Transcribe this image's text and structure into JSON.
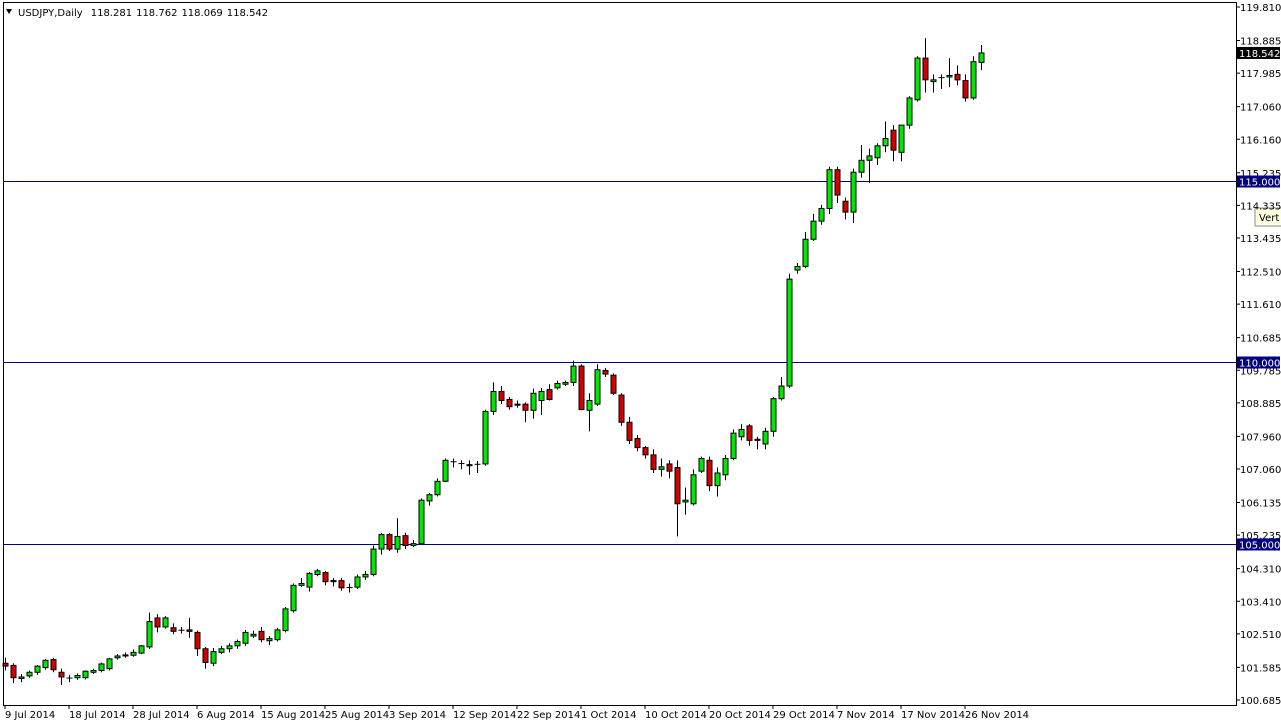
{
  "chart_data": {
    "type": "candlestick",
    "title": "USDJPY,Daily",
    "tooltip": "Vert",
    "categories": [
      "9 Jul 2014",
      null,
      null,
      null,
      null,
      null,
      null,
      null,
      "18 Jul 2014",
      null,
      null,
      null,
      null,
      null,
      null,
      null,
      "28 Jul 2014",
      null,
      null,
      null,
      null,
      null,
      null,
      null,
      "6 Aug 2014",
      null,
      null,
      null,
      null,
      null,
      null,
      null,
      "15 Aug 2014",
      null,
      null,
      null,
      null,
      null,
      null,
      null,
      "25 Aug 2014",
      null,
      null,
      null,
      null,
      null,
      null,
      null,
      "3 Sep 2014",
      null,
      null,
      null,
      null,
      null,
      null,
      null,
      "12 Sep 2014",
      null,
      null,
      null,
      null,
      null,
      null,
      null,
      "22 Sep 2014",
      null,
      null,
      null,
      null,
      null,
      null,
      null,
      "1 Oct 2014",
      null,
      null,
      null,
      null,
      null,
      null,
      null,
      "10 Oct 2014",
      null,
      null,
      null,
      null,
      null,
      null,
      null,
      "20 Oct 2014",
      null,
      null,
      null,
      null,
      null,
      null,
      null,
      "29 Oct 2014",
      null,
      null,
      null,
      null,
      null,
      null,
      null,
      "7 Nov 2014",
      null,
      null,
      null,
      null,
      null,
      null,
      null,
      "17 Nov 2014",
      null,
      null,
      null,
      null,
      null,
      null,
      null,
      "26 Nov 2014",
      null,
      null
    ],
    "open": [
      101.7,
      101.64,
      101.28,
      101.35,
      101.45,
      101.58,
      101.8,
      101.45,
      101.3,
      101.3,
      101.3,
      101.45,
      101.5,
      101.55,
      101.85,
      101.9,
      101.92,
      101.98,
      102.15,
      102.95,
      102.7,
      102.68,
      102.6,
      102.62,
      102.55,
      102.1,
      101.7,
      102.0,
      102.1,
      102.18,
      102.25,
      102.45,
      102.58,
      102.32,
      102.35,
      102.6,
      103.15,
      103.85,
      103.8,
      104.15,
      104.2,
      103.95,
      103.98,
      103.78,
      103.8,
      104.08,
      104.15,
      104.85,
      105.25,
      104.85,
      105.22,
      104.95,
      105.0,
      106.18,
      106.35,
      106.72,
      107.25,
      107.2,
      107.15,
      107.18,
      107.2,
      108.65,
      109.2,
      108.98,
      108.82,
      108.85,
      108.68,
      108.95,
      109.25,
      109.3,
      109.4,
      109.45,
      109.9,
      108.68,
      108.85,
      109.78,
      109.65,
      109.1,
      108.35,
      107.9,
      107.65,
      107.45,
      107.05,
      107.2,
      107.1,
      106.15,
      106.1,
      107.0,
      107.3,
      106.6,
      106.9,
      107.35,
      107.95,
      108.25,
      107.85,
      107.75,
      108.1,
      109.0,
      109.35,
      112.55,
      112.65,
      113.4,
      113.9,
      114.25,
      115.32,
      114.45,
      114.15,
      115.25,
      115.58,
      115.65,
      115.98,
      116.41,
      115.8,
      116.55,
      117.25,
      118.4,
      117.75,
      117.85,
      117.88,
      117.95,
      117.78,
      117.3,
      118.281
    ],
    "high": [
      101.85,
      101.7,
      101.4,
      101.5,
      101.65,
      101.82,
      101.85,
      101.55,
      101.38,
      101.42,
      101.5,
      101.55,
      101.72,
      101.85,
      101.95,
      102.0,
      102.08,
      102.2,
      103.1,
      103.05,
      103.0,
      102.8,
      102.7,
      102.95,
      102.6,
      102.15,
      102.12,
      102.18,
      102.25,
      102.35,
      102.62,
      102.6,
      102.7,
      102.45,
      102.68,
      103.25,
      103.9,
      104.05,
      104.22,
      104.3,
      104.25,
      104.05,
      104.05,
      103.9,
      104.15,
      104.25,
      104.95,
      105.3,
      105.3,
      105.7,
      105.3,
      105.1,
      106.25,
      106.4,
      106.8,
      107.35,
      107.35,
      107.3,
      107.3,
      107.28,
      108.7,
      109.45,
      109.35,
      109.05,
      108.95,
      108.9,
      109.28,
      109.3,
      109.4,
      109.5,
      109.5,
      110.05,
      109.95,
      109.15,
      109.95,
      109.85,
      109.7,
      109.15,
      108.5,
      108.0,
      107.7,
      107.6,
      107.35,
      107.3,
      107.3,
      106.55,
      107.05,
      107.4,
      107.4,
      107.1,
      107.45,
      108.15,
      108.3,
      108.3,
      107.95,
      108.2,
      109.05,
      109.6,
      112.45,
      112.75,
      113.6,
      114.1,
      114.35,
      115.4,
      115.4,
      114.55,
      115.35,
      116.0,
      115.9,
      116.05,
      116.65,
      116.55,
      116.55,
      117.35,
      118.45,
      118.95,
      117.95,
      117.95,
      118.4,
      118.2,
      117.95,
      118.45,
      118.762
    ],
    "low": [
      101.5,
      101.15,
      101.18,
      101.3,
      101.38,
      101.52,
      101.45,
      101.1,
      101.18,
      101.24,
      101.25,
      101.4,
      101.45,
      101.5,
      101.8,
      101.85,
      101.88,
      101.95,
      102.1,
      102.55,
      102.65,
      102.5,
      102.52,
      102.4,
      101.9,
      101.55,
      101.62,
      101.95,
      102.0,
      102.1,
      102.18,
      102.4,
      102.28,
      102.2,
      102.3,
      102.55,
      103.1,
      103.8,
      103.68,
      104.1,
      103.85,
      103.82,
      103.7,
      103.65,
      103.75,
      104.0,
      104.1,
      104.7,
      104.8,
      104.75,
      104.85,
      104.9,
      104.98,
      106.05,
      106.3,
      106.7,
      107.1,
      107.05,
      106.9,
      106.95,
      107.15,
      108.55,
      108.85,
      108.7,
      108.75,
      108.35,
      108.45,
      108.55,
      108.95,
      109.25,
      109.35,
      109.35,
      108.68,
      108.1,
      108.8,
      109.6,
      109.1,
      108.25,
      107.75,
      107.55,
      107.35,
      106.95,
      106.85,
      106.8,
      105.2,
      105.8,
      106.05,
      106.95,
      106.45,
      106.3,
      106.75,
      107.3,
      107.85,
      107.7,
      107.6,
      107.6,
      107.95,
      108.95,
      109.3,
      112.45,
      112.6,
      113.35,
      113.8,
      114.1,
      114.4,
      113.95,
      113.85,
      115.1,
      114.95,
      115.45,
      115.8,
      115.55,
      115.55,
      116.45,
      117.2,
      117.45,
      117.45,
      117.55,
      117.6,
      117.65,
      117.2,
      117.25,
      118.069
    ],
    "close": [
      101.62,
      101.3,
      101.32,
      101.45,
      101.62,
      101.78,
      101.52,
      101.32,
      101.28,
      101.36,
      101.48,
      101.5,
      101.68,
      101.82,
      101.9,
      101.93,
      102.0,
      102.18,
      102.85,
      102.7,
      102.95,
      102.58,
      102.62,
      102.58,
      102.1,
      101.72,
      102.02,
      102.1,
      102.18,
      102.3,
      102.55,
      102.5,
      102.35,
      102.38,
      102.62,
      103.2,
      103.85,
      103.9,
      104.18,
      104.25,
      103.95,
      103.98,
      103.78,
      103.8,
      104.08,
      104.15,
      104.85,
      105.25,
      104.85,
      105.2,
      104.95,
      105.0,
      106.2,
      106.35,
      106.72,
      107.3,
      107.27,
      107.22,
      107.18,
      107.2,
      108.65,
      109.2,
      108.95,
      108.78,
      108.85,
      108.68,
      109.15,
      109.2,
      108.98,
      109.42,
      109.45,
      109.9,
      108.7,
      108.95,
      109.8,
      109.68,
      109.15,
      108.35,
      107.85,
      107.65,
      107.45,
      107.05,
      107.12,
      107.0,
      106.1,
      106.2,
      106.9,
      107.35,
      106.6,
      106.95,
      107.35,
      108.05,
      108.15,
      107.85,
      107.88,
      108.1,
      109.0,
      109.35,
      112.3,
      112.65,
      113.4,
      113.9,
      114.25,
      115.32,
      114.62,
      114.15,
      115.25,
      115.58,
      115.7,
      115.98,
      116.18,
      115.86,
      116.55,
      117.3,
      118.4,
      117.8,
      117.8,
      117.87,
      117.92,
      117.8,
      117.3,
      118.3,
      118.542
    ],
    "up_color": "#00e600",
    "down_color": "#d00000",
    "line_color": "#000080",
    "ylim": [
      100.547,
      119.948
    ],
    "yticks": [
      {
        "value": 119.81,
        "label": "119.810"
      },
      {
        "value": 118.885,
        "label": "118.885"
      },
      {
        "value": 117.985,
        "label": "117.985"
      },
      {
        "value": 117.06,
        "label": "117.060"
      },
      {
        "value": 116.16,
        "label": "116.160"
      },
      {
        "value": 115.235,
        "label": "115.235"
      },
      {
        "value": 114.335,
        "label": "114.335"
      },
      {
        "value": 113.435,
        "label": "113.435"
      },
      {
        "value": 112.51,
        "label": "112.510"
      },
      {
        "value": 111.61,
        "label": "111.610"
      },
      {
        "value": 110.685,
        "label": "110.685"
      },
      {
        "value": 109.785,
        "label": "109.785"
      },
      {
        "value": 108.885,
        "label": "108.885"
      },
      {
        "value": 107.96,
        "label": "107.960"
      },
      {
        "value": 107.06,
        "label": "107.060"
      },
      {
        "value": 106.135,
        "label": "106.135"
      },
      {
        "value": 105.235,
        "label": "105.235"
      },
      {
        "value": 104.31,
        "label": "104.310"
      },
      {
        "value": 103.41,
        "label": "103.410"
      },
      {
        "value": 102.51,
        "label": "102.510"
      },
      {
        "value": 101.585,
        "label": "101.585"
      },
      {
        "value": 100.685,
        "label": "100.685"
      }
    ],
    "hlines": [
      {
        "value": 115,
        "label": "115.000"
      },
      {
        "value": 110,
        "label": "110.000"
      },
      {
        "value": 105,
        "label": "105.000"
      }
    ],
    "grid": false
  }
}
